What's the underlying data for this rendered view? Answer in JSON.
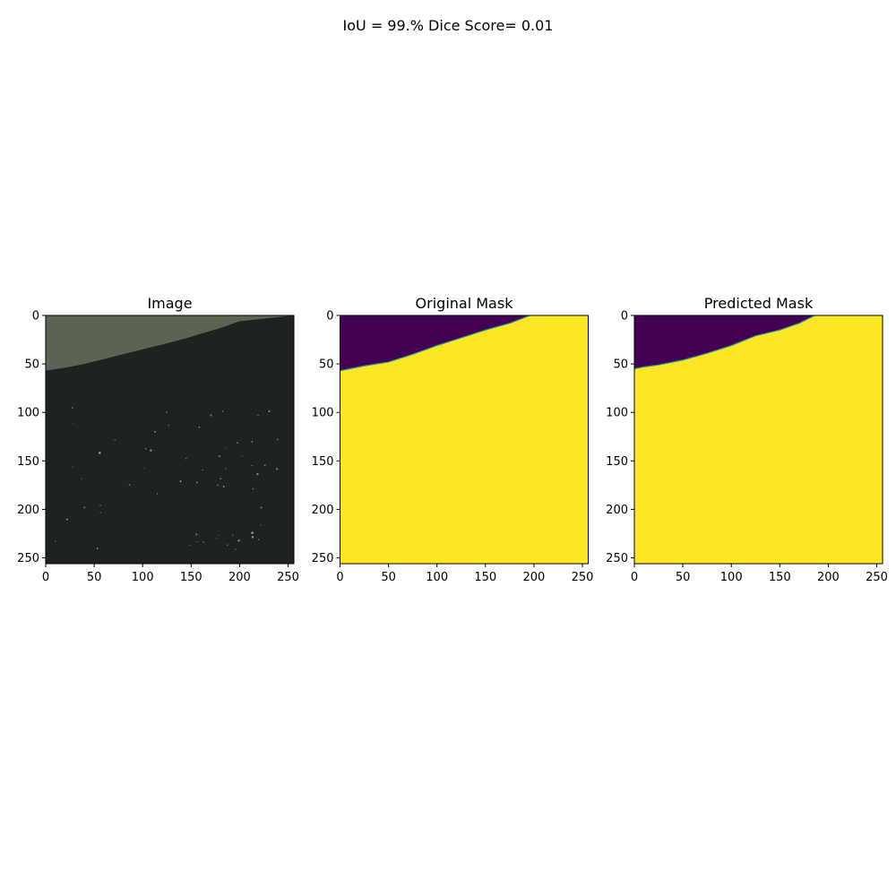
{
  "figure": {
    "suptitle": "IoU = 99.% Dice Score= 0.01"
  },
  "colors": {
    "background": "#ffffff",
    "mask_background": "#440154",
    "mask_foreground": "#fde725",
    "mask_edge": "#21918c",
    "photo_upper": "#5b6353",
    "photo_lower": "#1e2321",
    "photo_speckle": "#aab8b0"
  },
  "chart_data": [
    {
      "type": "heatmap",
      "title": "Image",
      "content": "photo",
      "xlim": [
        0,
        256
      ],
      "ylim": [
        256,
        0
      ],
      "xticks": [
        0,
        50,
        100,
        150,
        200,
        250
      ],
      "yticks": [
        0,
        50,
        100,
        150,
        200,
        250
      ],
      "xtick_labels": [
        "0",
        "50",
        "100",
        "150",
        "200",
        "250"
      ],
      "ytick_labels": [
        "0",
        "50",
        "100",
        "150",
        "200",
        "250"
      ],
      "boundary": {
        "x": [
          0,
          20,
          40,
          60,
          80,
          100,
          120,
          140,
          160,
          180,
          200,
          256
        ],
        "y": [
          57,
          54,
          50,
          45,
          40,
          35,
          30,
          25,
          19,
          13,
          6,
          0
        ]
      }
    },
    {
      "type": "heatmap",
      "title": "Original Mask",
      "content": "mask",
      "xlim": [
        0,
        256
      ],
      "ylim": [
        256,
        0
      ],
      "xticks": [
        0,
        50,
        100,
        150,
        200,
        250
      ],
      "yticks": [
        0,
        50,
        100,
        150,
        200,
        250
      ],
      "xtick_labels": [
        "0",
        "50",
        "100",
        "150",
        "200",
        "250"
      ],
      "ytick_labels": [
        "0",
        "50",
        "100",
        "150",
        "200",
        "250"
      ],
      "classes": [
        0,
        1
      ],
      "boundary": {
        "x": [
          0,
          10,
          25,
          50,
          75,
          100,
          125,
          150,
          175,
          196
        ],
        "y": [
          57,
          55,
          52,
          48,
          40,
          31,
          23,
          15,
          8,
          0
        ]
      }
    },
    {
      "type": "heatmap",
      "title": "Predicted Mask",
      "content": "mask",
      "xlim": [
        0,
        256
      ],
      "ylim": [
        256,
        0
      ],
      "xticks": [
        0,
        50,
        100,
        150,
        200,
        250
      ],
      "yticks": [
        0,
        50,
        100,
        150,
        200,
        250
      ],
      "xtick_labels": [
        "0",
        "50",
        "100",
        "150",
        "200",
        "250"
      ],
      "ytick_labels": [
        "0",
        "50",
        "100",
        "150",
        "200",
        "250"
      ],
      "classes": [
        0,
        1
      ],
      "boundary": {
        "x": [
          0,
          10,
          25,
          50,
          75,
          100,
          125,
          150,
          170,
          186
        ],
        "y": [
          55,
          53,
          51,
          46,
          39,
          31,
          21,
          15,
          8,
          0
        ]
      }
    }
  ]
}
